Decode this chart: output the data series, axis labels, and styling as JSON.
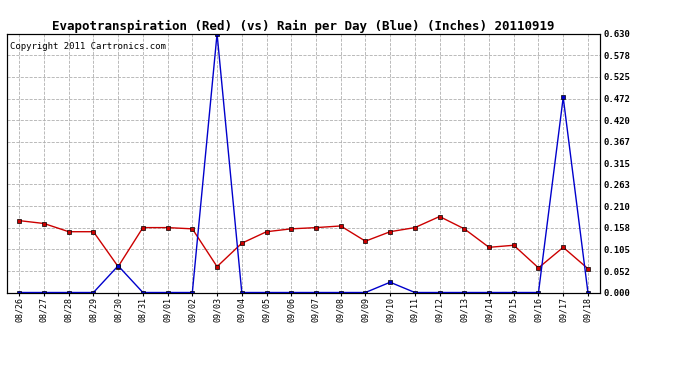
{
  "title": "Evapotranspiration (Red) (vs) Rain per Day (Blue) (Inches) 20110919",
  "copyright": "Copyright 2011 Cartronics.com",
  "x_labels": [
    "08/26",
    "08/27",
    "08/28",
    "08/29",
    "08/30",
    "08/31",
    "09/01",
    "09/02",
    "09/03",
    "09/04",
    "09/05",
    "09/06",
    "09/07",
    "09/08",
    "09/09",
    "09/10",
    "09/11",
    "09/12",
    "09/13",
    "09/14",
    "09/15",
    "09/16",
    "09/17",
    "09/18"
  ],
  "red_values": [
    0.175,
    0.168,
    0.148,
    0.148,
    0.063,
    0.158,
    0.158,
    0.155,
    0.063,
    0.12,
    0.148,
    0.155,
    0.158,
    0.162,
    0.125,
    0.148,
    0.158,
    0.185,
    0.155,
    0.11,
    0.115,
    0.06,
    0.11,
    0.058
  ],
  "blue_values": [
    0.0,
    0.0,
    0.0,
    0.0,
    0.065,
    0.0,
    0.0,
    0.0,
    0.63,
    0.0,
    0.0,
    0.0,
    0.0,
    0.0,
    0.0,
    0.025,
    0.0,
    0.0,
    0.0,
    0.0,
    0.0,
    0.0,
    0.475,
    0.0
  ],
  "ylim": [
    0.0,
    0.63
  ],
  "yticks": [
    0.0,
    0.052,
    0.105,
    0.158,
    0.21,
    0.263,
    0.315,
    0.367,
    0.42,
    0.472,
    0.525,
    0.578,
    0.63
  ],
  "red_color": "#cc0000",
  "blue_color": "#0000cc",
  "bg_color": "#ffffff",
  "grid_color": "#b0b0b0",
  "title_fontsize": 9,
  "copyright_fontsize": 6.5
}
